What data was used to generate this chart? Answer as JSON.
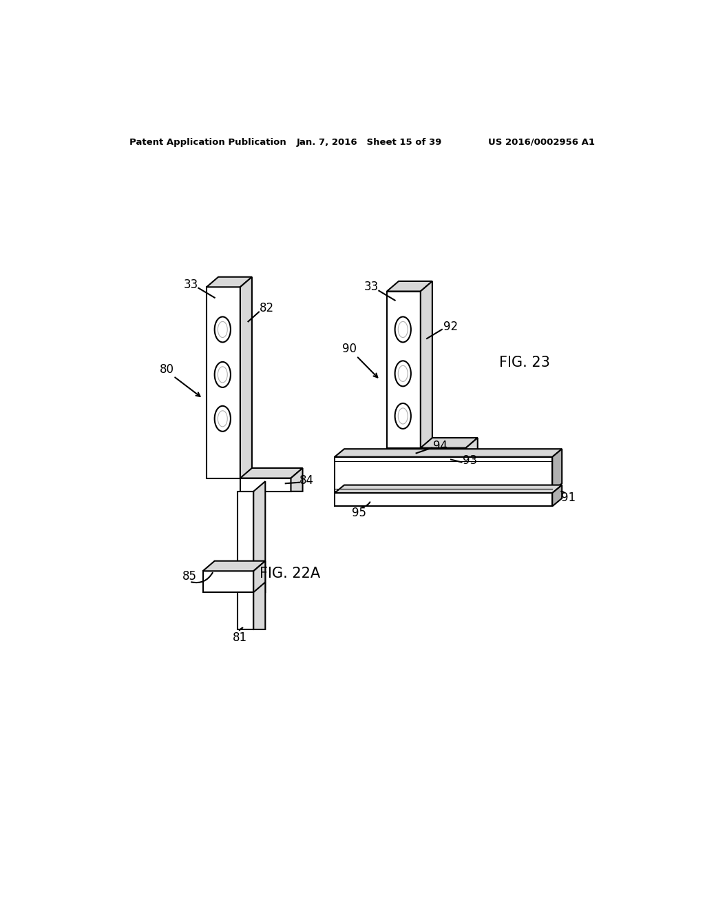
{
  "background_color": "#ffffff",
  "header_left": "Patent Application Publication",
  "header_center": "Jan. 7, 2016   Sheet 15 of 39",
  "header_right": "US 2016/0002956 A1",
  "fig22a_label": "FIG. 22A",
  "fig23_label": "FIG. 23",
  "line_color": "#000000",
  "lw": 1.5,
  "gray_light": "#d8d8d8",
  "gray_mid": "#b0b0b0",
  "gray_dark": "#888888"
}
